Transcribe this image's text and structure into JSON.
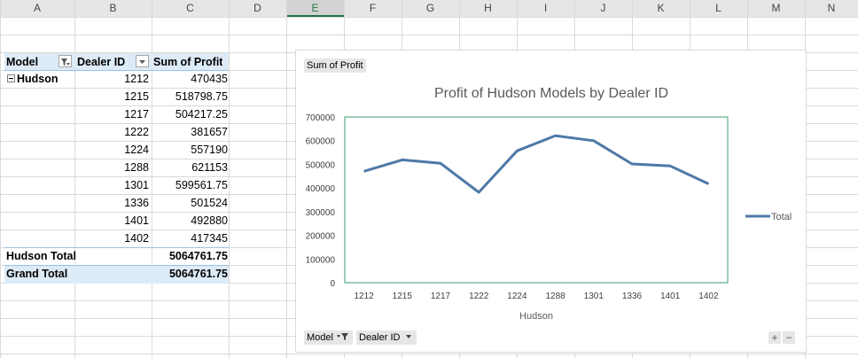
{
  "columns": [
    "A",
    "B",
    "C",
    "D",
    "E",
    "F",
    "G",
    "H",
    "I",
    "J",
    "K",
    "L",
    "M",
    "N"
  ],
  "selected_column": "E",
  "pivot": {
    "headers": {
      "model": "Model",
      "dealer_id": "Dealer ID",
      "sum_profit": "Sum of Profit"
    },
    "group": "Hudson",
    "rows": [
      {
        "dealer": "1212",
        "profit": "470435"
      },
      {
        "dealer": "1215",
        "profit": "518798.75"
      },
      {
        "dealer": "1217",
        "profit": "504217.25"
      },
      {
        "dealer": "1222",
        "profit": "381657"
      },
      {
        "dealer": "1224",
        "profit": "557190"
      },
      {
        "dealer": "1288",
        "profit": "621153"
      },
      {
        "dealer": "1301",
        "profit": "599561.75"
      },
      {
        "dealer": "1336",
        "profit": "501524"
      },
      {
        "dealer": "1401",
        "profit": "492880"
      },
      {
        "dealer": "1402",
        "profit": "417345"
      }
    ],
    "subtotal_label": "Hudson Total",
    "subtotal_value": "5064761.75",
    "grand_label": "Grand Total",
    "grand_value": "5064761.75"
  },
  "chart_buttons": {
    "values": "Sum of Profit",
    "model": "Model",
    "dealer": "Dealer ID",
    "plus": "+",
    "minus": "−"
  },
  "chart_data": {
    "type": "line",
    "title": "Profit of Hudson Models by Dealer ID",
    "xlabel": "Hudson",
    "ylabel": "",
    "categories": [
      "1212",
      "1215",
      "1217",
      "1222",
      "1224",
      "1288",
      "1301",
      "1336",
      "1401",
      "1402"
    ],
    "series": [
      {
        "name": "Total",
        "values": [
          470435,
          518798.75,
          504217.25,
          381657,
          557190,
          621153,
          599561.75,
          501524,
          492880,
          417345
        ]
      }
    ],
    "ylim": [
      0,
      700000
    ],
    "yticks": [
      "0",
      "100000",
      "200000",
      "300000",
      "400000",
      "500000",
      "600000",
      "700000"
    ],
    "legend": "right",
    "line_color": "#4e79a7"
  }
}
